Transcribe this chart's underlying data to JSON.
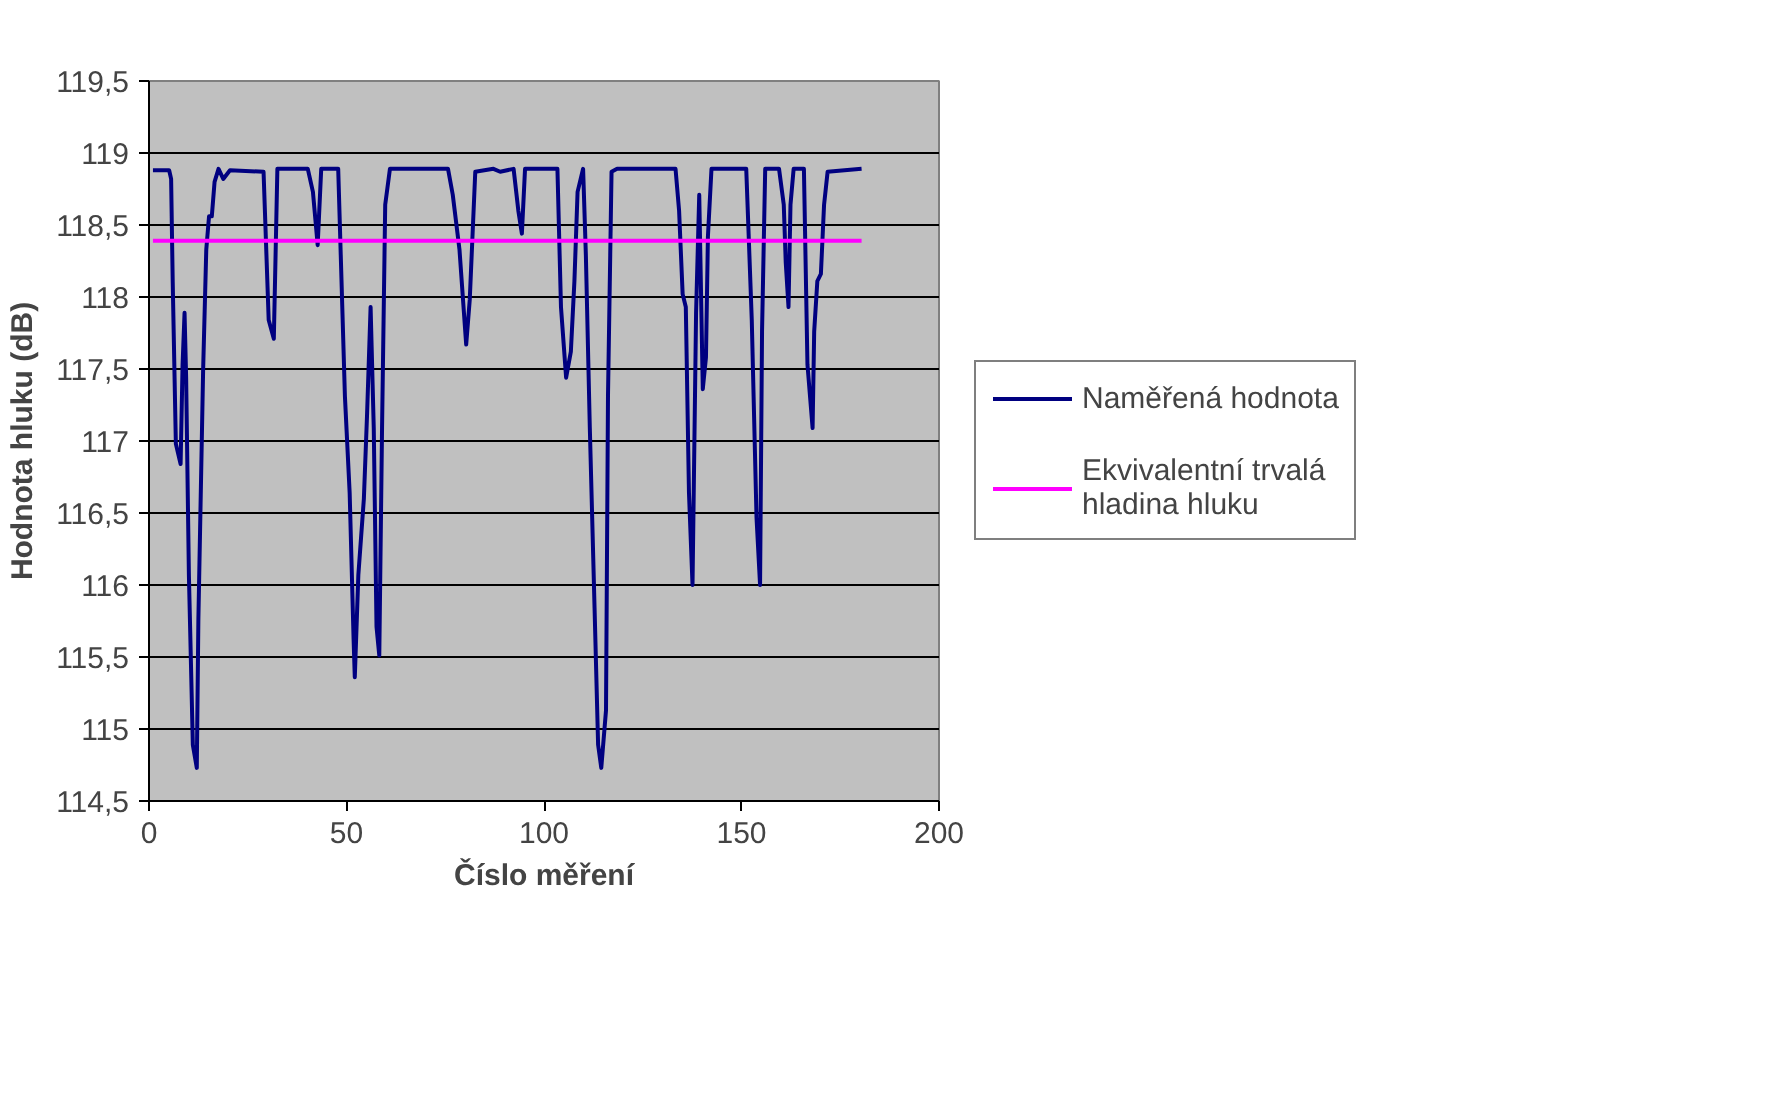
{
  "chart_data": {
    "type": "line",
    "xlabel": "Číslo měření",
    "ylabel": "Hodnota hluku (dB)",
    "xlim": [
      0,
      200
    ],
    "xticks": [
      0,
      50,
      100,
      150,
      200
    ],
    "ylim": [
      114.5,
      119.5
    ],
    "yticks": [
      {
        "value": 114.5,
        "label": "114,5"
      },
      115,
      {
        "value": 115.5,
        "label": "115,5"
      },
      116,
      {
        "value": 116.5,
        "label": "116,5"
      },
      117,
      {
        "value": 117.5,
        "label": "117,5"
      },
      118,
      {
        "value": 118.5,
        "label": "118,5"
      },
      119,
      {
        "value": 119.5,
        "label": "119,5"
      }
    ],
    "grid": "y",
    "legend": "right",
    "marker": "none",
    "line_style": "solid",
    "series": [
      {
        "name": "Naměřená hodnota",
        "color": "#000080",
        "x": [
          1,
          5.1,
          5.6,
          6,
          6.8,
          8,
          8.5,
          9,
          9.4,
          10.1,
          11.1,
          12.1,
          12.5,
          13.7,
          14.5,
          15.2,
          15.9,
          16.6,
          17.6,
          18.8,
          20.5,
          29,
          30.3,
          31.6,
          32.5,
          40.2,
          41.5,
          42.7,
          43.6,
          47.9,
          49.6,
          50.8,
          51.8,
          52.1,
          53,
          54.4,
          55.2,
          56.1,
          56.9,
          57.6,
          58.3,
          59,
          59.8,
          61,
          75.7,
          76.9,
          78.6,
          80.3,
          81.2,
          82.6,
          87.2,
          88.9,
          92.3,
          93.5,
          94.4,
          95.2,
          103.4,
          104.3,
          105.6,
          106.8,
          107.7,
          108.5,
          109.9,
          110.6,
          111.6,
          112.8,
          113.7,
          114.5,
          115.7,
          116.2,
          117.1,
          118.5,
          133.3,
          134.2,
          135.1,
          135.9,
          136.7,
          137.6,
          138.5,
          139.3,
          140.2,
          141,
          141.5,
          142.4,
          151.2,
          152.6,
          153.8,
          154.7,
          155.2,
          156,
          159.5,
          160.7,
          161.2,
          161.9,
          162.4,
          163.2,
          165.8,
          166.7,
          168,
          168.4,
          169.2,
          170.1,
          170.9,
          171.8,
          180.4
        ],
        "values": [
          118.88,
          118.88,
          118.82,
          118.11,
          116.98,
          116.84,
          117.53,
          117.89,
          117.44,
          116.07,
          114.89,
          114.73,
          115.76,
          117.49,
          118.33,
          118.56,
          118.56,
          118.8,
          118.89,
          118.82,
          118.88,
          118.87,
          117.84,
          117.71,
          118.89,
          118.89,
          118.73,
          118.36,
          118.89,
          118.89,
          117.31,
          116.64,
          115.62,
          115.36,
          116.07,
          116.6,
          117.18,
          117.93,
          117.09,
          115.71,
          115.51,
          117.09,
          118.64,
          118.89,
          118.89,
          118.71,
          118.33,
          117.67,
          117.98,
          118.87,
          118.89,
          118.87,
          118.89,
          118.6,
          118.44,
          118.89,
          118.89,
          117.93,
          117.44,
          117.62,
          118.11,
          118.73,
          118.89,
          118.29,
          117.09,
          115.84,
          114.89,
          114.73,
          115.13,
          117.31,
          118.87,
          118.89,
          118.89,
          118.6,
          118.02,
          117.93,
          116.64,
          116.0,
          117.89,
          118.71,
          117.36,
          117.58,
          118.42,
          118.89,
          118.89,
          117.84,
          116.47,
          116.0,
          117.76,
          118.89,
          118.89,
          118.64,
          118.24,
          117.93,
          118.64,
          118.89,
          118.89,
          117.53,
          117.09,
          117.76,
          118.11,
          118.16,
          118.64,
          118.87,
          118.89
        ]
      },
      {
        "name": "Ekvivalentní trvalá hladina hluku",
        "color": "#ff00ff",
        "x": [
          1,
          180.4
        ],
        "values": [
          118.39,
          118.39
        ]
      }
    ]
  }
}
